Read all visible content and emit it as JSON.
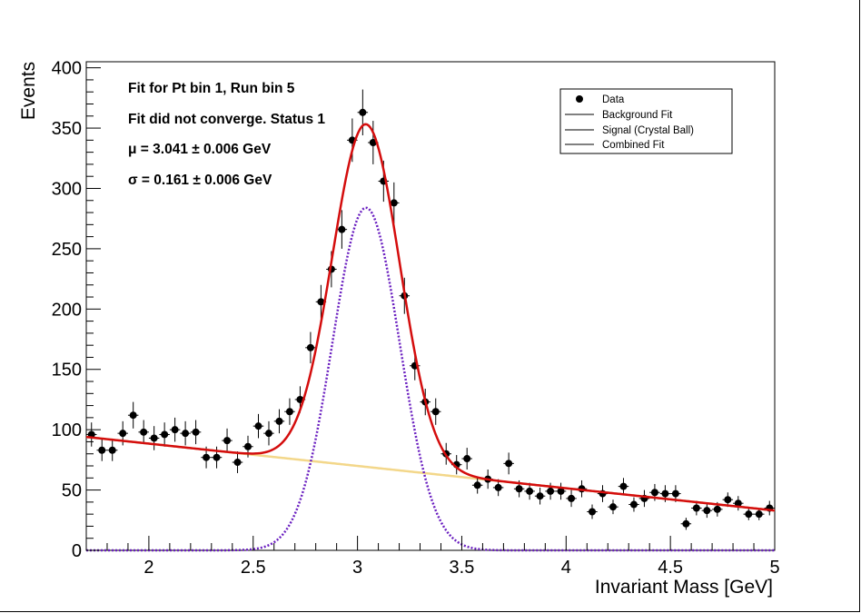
{
  "chart_data": {
    "type": "scatter",
    "xlabel": "Invariant Mass [GeV]",
    "ylabel": "Events",
    "xlim": [
      1.7,
      5.0
    ],
    "ylim": [
      0,
      405
    ],
    "x_ticks": [
      2,
      2.5,
      3,
      3.5,
      4,
      4.5,
      5
    ],
    "x_tick_labels": [
      "2",
      "2.5",
      "3",
      "3.5",
      "4",
      "4.5",
      "5"
    ],
    "y_ticks": [
      0,
      50,
      100,
      150,
      200,
      250,
      300,
      350,
      400
    ],
    "y_tick_labels": [
      "0",
      "50",
      "100",
      "150",
      "200",
      "250",
      "300",
      "350",
      "400"
    ],
    "grid": false,
    "annotations": [
      "Fit for Pt bin 1, Run bin 5",
      "Fit did not converge. Status 1",
      "μ = 3.041 ± 0.006 GeV",
      "σ = 0.161 ± 0.006 GeV"
    ],
    "legend": {
      "placement": "top-right",
      "entries": [
        "Data",
        "Background Fit",
        "Signal (Crystal Ball)",
        "Combined Fit"
      ]
    },
    "bin_half_width": 0.025,
    "series": [
      {
        "name": "Data",
        "x": [
          1.725,
          1.775,
          1.825,
          1.875,
          1.925,
          1.975,
          2.025,
          2.075,
          2.125,
          2.175,
          2.225,
          2.275,
          2.325,
          2.375,
          2.425,
          2.475,
          2.525,
          2.575,
          2.625,
          2.675,
          2.725,
          2.775,
          2.825,
          2.875,
          2.925,
          2.975,
          3.025,
          3.075,
          3.125,
          3.175,
          3.225,
          3.275,
          3.325,
          3.375,
          3.425,
          3.475,
          3.525,
          3.575,
          3.625,
          3.675,
          3.725,
          3.775,
          3.825,
          3.875,
          3.925,
          3.975,
          4.025,
          4.075,
          4.125,
          4.175,
          4.225,
          4.275,
          4.325,
          4.375,
          4.425,
          4.475,
          4.525,
          4.575,
          4.625,
          4.675,
          4.725,
          4.775,
          4.825,
          4.875,
          4.925,
          4.975
        ],
        "y": [
          96,
          83,
          83,
          97,
          112,
          98,
          93,
          96,
          100,
          97,
          98,
          77,
          77,
          91,
          73,
          86,
          103,
          97,
          107,
          115,
          125,
          168,
          206,
          233,
          266,
          340,
          363,
          338,
          306,
          288,
          211,
          153,
          123,
          115,
          80,
          71,
          76,
          54,
          59,
          52,
          72,
          51,
          49,
          45,
          49,
          49,
          43,
          51,
          32,
          47,
          36,
          53,
          38,
          43,
          48,
          47,
          47,
          22,
          35,
          33,
          34,
          42,
          39,
          30,
          30,
          35
        ],
        "err": [
          10,
          9,
          9,
          10,
          11,
          10,
          10,
          10,
          10,
          10,
          10,
          9,
          9,
          10,
          9,
          9,
          10,
          10,
          10,
          11,
          11,
          13,
          14,
          15,
          16,
          18,
          19,
          18,
          17,
          17,
          15,
          12,
          11,
          11,
          9,
          8,
          9,
          7,
          8,
          7,
          9,
          7,
          7,
          7,
          7,
          7,
          7,
          7,
          6,
          7,
          6,
          7,
          6,
          7,
          7,
          7,
          7,
          5,
          6,
          6,
          6,
          6,
          6,
          5,
          5,
          6
        ]
      },
      {
        "name": "Background Fit",
        "color": "#f3d78a",
        "style": "solid"
      },
      {
        "name": "Signal (Crystal Ball)",
        "color": "#6a1fc0",
        "style": "dotted"
      },
      {
        "name": "Combined Fit",
        "color": "#d40d0d",
        "style": "solid"
      }
    ],
    "fit": {
      "mu": 3.041,
      "sigma": 0.161,
      "signal_amplitude": 284,
      "background_linear": {
        "y_at_1_7": 94,
        "y_at_5_0": 33
      }
    }
  }
}
